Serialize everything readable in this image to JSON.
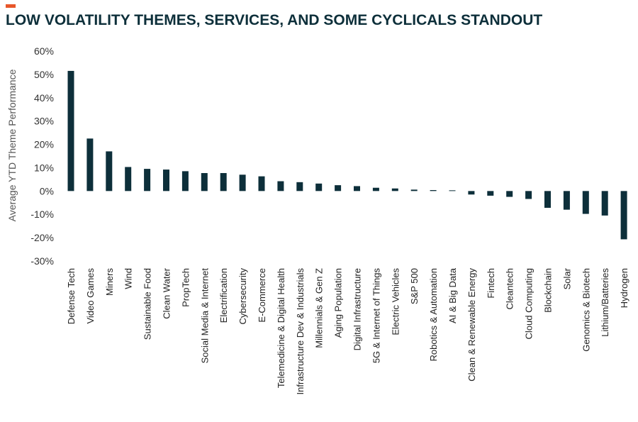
{
  "colors": {
    "accent": "#e8572a",
    "bar": "#0d2f3a",
    "title": "#0d2f3a"
  },
  "chart_data": {
    "type": "bar",
    "title": "LOW VOLATILITY THEMES, SERVICES, AND SOME CYCLICALS STANDOUT",
    "xlabel": "",
    "ylabel": "Average YTD Theme Performance",
    "ylim": [
      -30,
      60
    ],
    "yticks": [
      60,
      50,
      40,
      30,
      20,
      10,
      0,
      -10,
      -20,
      -30
    ],
    "ytick_labels": [
      "60%",
      "50%",
      "40%",
      "30%",
      "20%",
      "10%",
      "0%",
      "-10%",
      "-20%",
      "-30%"
    ],
    "grid": false,
    "categories": [
      "Defense Tech",
      "Video Games",
      "Miners",
      "Wind",
      "Sustainable Food",
      "Clean Water",
      "PropTech",
      "Social Media & Internet",
      "Electrification",
      "Cybersecurity",
      "E-Commerce",
      "Telemedicine & Digital Health",
      "Infrastructure Dev & Industrials",
      "Millennials & Gen Z",
      "Aging Population",
      "Digital Infrastructure",
      "5G & Internet of Things",
      "Electric Vehicles",
      "S&P 500",
      "Robotics & Automation",
      "AI & Big Data",
      "Clean & Renewable Energy",
      "Fintech",
      "Cleantech",
      "Cloud Computing",
      "Blockchain",
      "Solar",
      "Genomics & Biotech",
      "Lithium/Batteries",
      "Hydrogen"
    ],
    "values": [
      51.5,
      22.5,
      17,
      10.3,
      9.5,
      9.2,
      8.5,
      7.7,
      7.7,
      7,
      6.3,
      4.2,
      3.8,
      3.2,
      2.5,
      2.1,
      1.4,
      1.1,
      0.6,
      0.4,
      0.3,
      -1.5,
      -2,
      -2.5,
      -3.4,
      -7.2,
      -8,
      -9.8,
      -10.5,
      -20.7
    ]
  }
}
